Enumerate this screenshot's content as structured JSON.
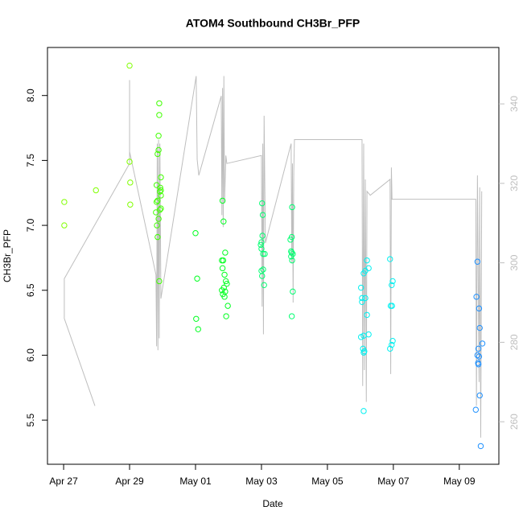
{
  "chart_data": {
    "type": "scatter",
    "title": "ATOM4 Southbound CH3Br_PFP",
    "x_label": "Date",
    "y_label": "CH3Br_PFP",
    "xlim": [
      -0.49,
      13.2
    ],
    "xticks": [
      {
        "value": 0,
        "label": "Apr 27"
      },
      {
        "value": 2,
        "label": "Apr 29"
      },
      {
        "value": 4,
        "label": "May 01"
      },
      {
        "value": 6,
        "label": "May 03"
      },
      {
        "value": 8,
        "label": "May 05"
      },
      {
        "value": 10,
        "label": "May 07"
      },
      {
        "value": 12,
        "label": "May 09"
      }
    ],
    "ylim": [
      5.16,
      8.37
    ],
    "yticks": [
      5.5,
      {
        "value": 6,
        "label": "6.0"
      },
      6.5,
      {
        "value": 7,
        "label": "7.0"
      },
      7.5,
      {
        "value": 8,
        "label": "8.0"
      }
    ],
    "y2lim": [
      249.3,
      354.2
    ],
    "y2ticks": [
      260,
      280,
      300,
      320,
      340
    ],
    "series": [
      {
        "color": "#80ff00",
        "x": [
          0.02,
          0.02,
          0.98,
          2.0,
          2.0,
          2.02,
          2.02
        ],
        "values": [
          7.18,
          7.0,
          7.27,
          8.23,
          7.49,
          7.33,
          7.16
        ]
      },
      {
        "color": "#40ff00",
        "x": [
          2.9,
          2.9,
          2.88,
          2.88,
          2.85,
          2.82,
          2.93,
          2.92,
          2.95,
          2.95,
          2.95,
          2.85,
          2.82,
          2.95,
          2.92,
          2.8,
          2.88,
          2.83,
          2.85,
          2.9
        ],
        "values": [
          7.94,
          7.85,
          7.69,
          7.58,
          7.55,
          7.31,
          7.29,
          7.26,
          7.27,
          7.23,
          7.37,
          7.19,
          7.18,
          7.13,
          7.12,
          7.1,
          7.05,
          7.0,
          6.91,
          6.57
        ]
      },
      {
        "color": "#00ff20",
        "x": [
          4.0,
          4.05,
          4.02,
          4.08,
          4.82,
          4.85,
          4.9,
          4.8,
          4.84,
          4.82,
          4.88,
          4.92,
          4.95,
          4.86,
          4.8,
          4.9,
          4.83,
          4.88,
          4.98,
          4.93
        ],
        "values": [
          6.94,
          6.59,
          6.28,
          6.2,
          7.19,
          7.03,
          6.79,
          6.73,
          6.73,
          6.67,
          6.62,
          6.57,
          6.55,
          6.52,
          6.5,
          6.49,
          6.47,
          6.45,
          6.38,
          6.3
        ]
      },
      {
        "color": "#00ff70",
        "x": [
          6.02,
          6.04,
          6.03,
          6.0,
          5.98,
          6.0,
          6.05,
          6.1,
          6.05,
          6.0,
          6.02,
          6.08,
          6.93,
          6.92,
          6.88,
          6.9,
          6.92,
          6.95,
          6.9,
          6.93,
          6.95,
          6.92
        ],
        "values": [
          7.17,
          7.08,
          6.92,
          6.87,
          6.85,
          6.82,
          6.78,
          6.78,
          6.66,
          6.65,
          6.61,
          6.54,
          7.14,
          6.91,
          6.89,
          6.8,
          6.79,
          6.78,
          6.76,
          6.73,
          6.49,
          6.3
        ]
      },
      {
        "color": "#00f0f0",
        "x": [
          9.2,
          9.25,
          9.15,
          9.1,
          9.02,
          9.05,
          9.15,
          9.05,
          9.2,
          9.25,
          9.1,
          9.02,
          9.08,
          9.12,
          9.1,
          9.1,
          9.9,
          9.98,
          9.95,
          9.92,
          9.96,
          9.98,
          9.95,
          9.9
        ],
        "values": [
          6.73,
          6.67,
          6.65,
          6.63,
          6.52,
          6.44,
          6.44,
          6.41,
          6.31,
          6.16,
          6.15,
          6.14,
          6.05,
          6.03,
          6.02,
          5.57,
          6.74,
          6.57,
          6.54,
          6.38,
          6.38,
          6.11,
          6.08,
          6.05
        ]
      },
      {
        "color": "#1e90ff",
        "x": [
          12.55,
          12.52,
          12.6,
          12.62,
          12.7,
          12.58,
          12.55,
          12.6,
          12.57,
          12.58,
          12.62,
          12.5,
          12.65
        ],
        "values": [
          6.72,
          6.45,
          6.36,
          6.21,
          6.09,
          6.05,
          6.0,
          5.99,
          5.94,
          5.93,
          5.69,
          5.58,
          5.3
        ]
      },
      {
        "type": "line",
        "axis": "y2",
        "color": "#bebebe",
        "x": [
          0.95,
          0.02,
          0.02,
          2.0,
          2.0,
          2.0,
          2.8,
          2.82,
          2.84,
          2.86,
          2.88,
          2.9,
          2.92,
          2.95,
          4.02,
          4.05,
          4.1,
          4.78,
          4.8,
          4.82,
          4.84,
          4.86,
          4.88,
          4.92,
          4.95,
          6.0,
          6.02,
          6.04,
          6.06,
          6.08,
          6.12,
          6.9,
          6.92,
          6.94,
          6.96,
          6.98,
          7.0,
          9.05,
          9.07,
          9.1,
          9.12,
          9.15,
          9.18,
          9.2,
          9.3,
          9.9,
          9.92,
          9.94,
          9.96,
          12.5,
          12.52,
          12.55,
          12.6,
          12.62,
          12.65,
          12.68
        ],
        "values": [
          264,
          286,
          296,
          325,
          346,
          328,
          297,
          279,
          330,
          278,
          331,
          281,
          330,
          291,
          347,
          326,
          322,
          342,
          312,
          344,
          309,
          347,
          315,
          327,
          325,
          327,
          289,
          330,
          282,
          337,
          305,
          330,
          300,
          325,
          290,
          323,
          331,
          331,
          269,
          330,
          273,
          321,
          265,
          318,
          317,
          321,
          272,
          324,
          316,
          316,
          264,
          322,
          270,
          319,
          256,
          318
        ]
      }
    ]
  }
}
